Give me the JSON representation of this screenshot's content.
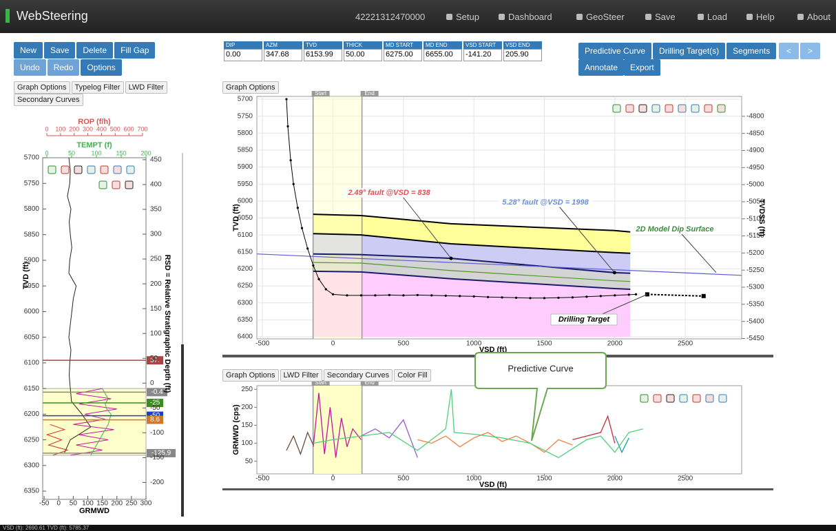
{
  "navbar": {
    "brand": "WebSteering",
    "well_id": "42221312470000",
    "items": [
      "Setup",
      "Dashboard",
      "GeoSteer",
      "Save",
      "Load",
      "Help",
      "About"
    ]
  },
  "toolbar": {
    "row1": [
      "New",
      "Save",
      "Delete",
      "Fill Gap"
    ],
    "row2": [
      "Undo",
      "Redo",
      "Options"
    ]
  },
  "params": [
    {
      "label": "DIP",
      "value": "0.00"
    },
    {
      "label": "AZM",
      "value": "347.68"
    },
    {
      "label": "TVD",
      "value": "6153.99"
    },
    {
      "label": "THICK",
      "value": "50.00"
    },
    {
      "label": "MD START",
      "value": "6275.00"
    },
    {
      "label": "MD END",
      "value": "6655.00"
    },
    {
      "label": "VSD START",
      "value": "-141.20"
    },
    {
      "label": "VSD END",
      "value": "205.90"
    }
  ],
  "actions": {
    "row1": [
      "Predictive Curve",
      "Drilling Target(s)",
      "Segments"
    ],
    "row2": [
      "Annotate",
      "Export"
    ],
    "nav": [
      "<",
      ">"
    ]
  },
  "typelog": {
    "tabs": [
      "Graph Options",
      "Typelog Filter",
      "LWD Filter",
      "Secondary Curves"
    ],
    "rop_axis": {
      "label": "ROP (f/h)",
      "color": "#d9534f",
      "xlim": [
        0,
        700
      ],
      "ticks": [
        0,
        100,
        200,
        300,
        400,
        500,
        600,
        700
      ]
    },
    "tempt_axis": {
      "label": "TEMPT (f)",
      "color": "#3cb44b",
      "xlim": [
        0,
        200
      ],
      "ticks": [
        0,
        50,
        100,
        150,
        200
      ]
    },
    "xlabel": "GRMWD",
    "xlim": [
      -55,
      300
    ],
    "xticks": [
      -50,
      0,
      50,
      100,
      150,
      200,
      250,
      300
    ],
    "ylabel": "TVD (ft)",
    "ylim": [
      5700,
      6366
    ],
    "yticks": [
      5700,
      5750,
      5800,
      5850,
      5900,
      5950,
      6000,
      6050,
      6100,
      6150,
      6200,
      6250,
      6300,
      6350
    ],
    "y2label": "RSD = Relative Stratigraphic Depth (ft)",
    "y2lim": [
      454,
      -234
    ],
    "y2ticks": [
      450,
      400,
      350,
      300,
      250,
      200,
      150,
      100,
      50,
      0,
      -50,
      -100,
      -150,
      -200
    ],
    "highlight": [
      6150,
      6280
    ],
    "series": [
      {
        "color": "#222222",
        "depth": [
          5700,
          5725,
          5750,
          5775,
          5800,
          5825,
          5850,
          5875,
          5900,
          5925,
          5950,
          5975,
          6000,
          6025,
          6050,
          6075,
          6100,
          6125,
          6150,
          6175,
          6200,
          6225,
          6250,
          6275
        ],
        "values": [
          35,
          40,
          38,
          30,
          42,
          36,
          40,
          45,
          38,
          35,
          60,
          50,
          45,
          40,
          35,
          42,
          38,
          36,
          40,
          44,
          80,
          110,
          40,
          20
        ]
      },
      {
        "color": "#c0189a",
        "depth": [
          6150,
          6160,
          6170,
          6180,
          6190,
          6200,
          6210,
          6220,
          6230,
          6240,
          6250,
          6260,
          6270,
          6280
        ],
        "values": [
          150,
          60,
          180,
          70,
          200,
          90,
          160,
          50,
          190,
          70,
          170,
          60,
          150,
          40
        ]
      },
      {
        "color": "#d03030",
        "depth": [
          6220,
          6230,
          6240,
          6250,
          6260,
          6270,
          6280
        ],
        "values": [
          -30,
          20,
          -40,
          10,
          -35,
          30,
          -20
        ]
      },
      {
        "color": "#3cb44b",
        "depth": [
          6150,
          6160,
          6170,
          6180,
          6190,
          6200,
          6210,
          6220,
          6230,
          6240,
          6250,
          6260,
          6270,
          6280
        ],
        "values": [
          150,
          160,
          170,
          160,
          165,
          180,
          175,
          170,
          160,
          150,
          140,
          130,
          120,
          110
        ]
      }
    ],
    "markers": [
      {
        "depth": 6095,
        "label": "57.",
        "color": "#a94442"
      },
      {
        "depth": 6157,
        "label": "-0.4",
        "color": "#888888"
      },
      {
        "depth": 6178,
        "label": "-25",
        "color": "#3c8c1e"
      },
      {
        "depth": 6203,
        "label": "-50",
        "color": "#1f3fbf"
      },
      {
        "depth": 6211,
        "label": "8.6",
        "color": "#d2782a"
      },
      {
        "depth": 6276,
        "label": "-125.9",
        "color": "#888888"
      }
    ]
  },
  "main_chart": {
    "tabs": [
      "Graph Options"
    ],
    "window_labels": [
      "Start",
      "End"
    ],
    "xlabel": "VSD (ft)",
    "ylabel": "TVD (ft)",
    "y2label": "TVDSS (ft)",
    "xlim": [
      -540,
      2900
    ],
    "xticks": [
      -500,
      0,
      500,
      1000,
      1500,
      2000,
      2500
    ],
    "ylim": [
      5700,
      6400
    ],
    "yticks": [
      5700,
      5750,
      5800,
      5850,
      5900,
      5950,
      6000,
      6050,
      6100,
      6150,
      6200,
      6250,
      6300,
      6350,
      6400
    ],
    "y2lim": [
      -4750,
      -5445
    ],
    "y2ticks": [
      -4800,
      -4850,
      -4900,
      -4950,
      -5000,
      -5050,
      -5100,
      -5150,
      -5200,
      -5250,
      -5300,
      -5350,
      -5400,
      -5450
    ],
    "grid": true,
    "surfaces": [
      {
        "color": "#000000",
        "fill": "#ffff99",
        "vsd": [
          -140,
          200,
          838,
          1998,
          2110
        ],
        "tvd": [
          6039,
          6043,
          6067,
          6087,
          6091
        ]
      },
      {
        "color": "#000000",
        "fill": "#ccccf5",
        "vsd": [
          -140,
          200,
          838,
          1998,
          2110
        ],
        "tvd": [
          6096,
          6100,
          6126,
          6152,
          6154
        ]
      },
      {
        "color": "#1a1a6e",
        "fill": "#d4d4d4",
        "vsd": [
          -140,
          200,
          838,
          1998,
          2110
        ],
        "tvd": [
          6156,
          6158,
          6169,
          6211,
          6213
        ]
      },
      {
        "color": "#4c9a2a",
        "fill": null,
        "vsd": [
          -140,
          200,
          838,
          1998,
          2110
        ],
        "tvd": [
          6181,
          6183,
          6205,
          6235,
          6237
        ]
      },
      {
        "color": "#1a1a6e",
        "fill": "#ffccff",
        "vsd": [
          -140,
          200,
          838,
          1998,
          2110
        ],
        "tvd": [
          6207,
          6209,
          6229,
          6258,
          6260
        ]
      }
    ],
    "dip_surface": {
      "color": "#5b5bd6",
      "vsd": [
        -540,
        2900
      ],
      "tvd": [
        6156,
        6219
      ]
    },
    "well_path": {
      "color": "#000000",
      "vsd": [
        -330,
        -320,
        -300,
        -280,
        -250,
        -220,
        -180,
        -140,
        -100,
        -50,
        0,
        100,
        200,
        300,
        400,
        500,
        600,
        700,
        800,
        900,
        1000,
        1100,
        1200,
        1300,
        1400,
        1500,
        1600,
        1700,
        1800,
        1900,
        2000,
        2100,
        2150
      ],
      "tvd": [
        5700,
        5780,
        5880,
        5950,
        6020,
        6080,
        6140,
        6190,
        6230,
        6260,
        6275,
        6278,
        6278,
        6278,
        6277,
        6278,
        6277,
        6278,
        6279,
        6280,
        6281,
        6283,
        6284,
        6285,
        6286,
        6286,
        6285,
        6284,
        6282,
        6280,
        6278,
        6276,
        6275
      ]
    },
    "target": {
      "vsd": [
        2230,
        2630
      ],
      "tvd": [
        6275,
        6280
      ]
    },
    "annotations": [
      {
        "text": "2.49° fault @VSD = 838",
        "color": "#e05050",
        "vsd": 838
      },
      {
        "text": "5.28° fault @VSD = 1998",
        "color": "#6a8fd8",
        "vsd": 1998
      },
      {
        "text": "2D Model Dip Surface",
        "color": "#3c8c3c"
      },
      {
        "text": "Drilling Target",
        "color": "#000000"
      }
    ]
  },
  "bottom_chart": {
    "tabs": [
      "Graph Options",
      "LWD Filter",
      "Secondary Curves",
      "Color Fill"
    ],
    "window_labels": [
      "Start",
      "End"
    ],
    "xlabel": "VSD (ft)",
    "ylabel": "GRMWD (cps)",
    "callout": "Predictive Curve",
    "xlim": [
      -540,
      2900
    ],
    "xticks": [
      -500,
      0,
      500,
      1000,
      1500,
      2000,
      2500
    ],
    "ylim": [
      15,
      260
    ],
    "yticks": [
      50,
      100,
      150,
      200,
      250
    ],
    "series": [
      {
        "color": "#6b4a3a",
        "x": [
          -330,
          -280,
          -230,
          -180,
          -140
        ],
        "values": [
          80,
          120,
          70,
          130,
          95
        ]
      },
      {
        "color": "#c0189a",
        "x": [
          -140,
          -100,
          -60,
          -20,
          20,
          60,
          100,
          140,
          200
        ],
        "values": [
          90,
          240,
          70,
          200,
          60,
          170,
          90,
          140,
          110
        ]
      },
      {
        "color": "#9b59d0",
        "x": [
          200,
          300,
          400,
          500,
          600
        ],
        "values": [
          120,
          140,
          115,
          165,
          60
        ]
      },
      {
        "color": "#f08040",
        "x": [
          600,
          700,
          800,
          900,
          1000,
          1100,
          1200,
          1300,
          1400,
          1500,
          1600,
          1700
        ],
        "values": [
          110,
          100,
          120,
          90,
          115,
          130,
          105,
          120,
          100,
          75,
          110,
          95
        ]
      },
      {
        "color": "#c0303a",
        "x": [
          1700,
          1800,
          1900,
          1950,
          2000
        ],
        "values": [
          110,
          120,
          130,
          175,
          100
        ]
      },
      {
        "color": "#17a0a0",
        "x": [
          2000,
          2050,
          2100
        ],
        "values": [
          120,
          75,
          115
        ]
      },
      {
        "color": "#4cd07a",
        "x": [
          -140,
          0,
          200,
          400,
          600,
          800,
          840,
          860,
          1000,
          1200,
          1400,
          1600,
          1800,
          1900,
          2000,
          2100,
          2200
        ],
        "values": [
          100,
          110,
          120,
          130,
          80,
          140,
          250,
          130,
          125,
          115,
          100,
          60,
          110,
          120,
          75,
          130,
          140
        ]
      }
    ]
  },
  "status": "VSD (ft): 2690.61 TVD (ft): 5785.37"
}
